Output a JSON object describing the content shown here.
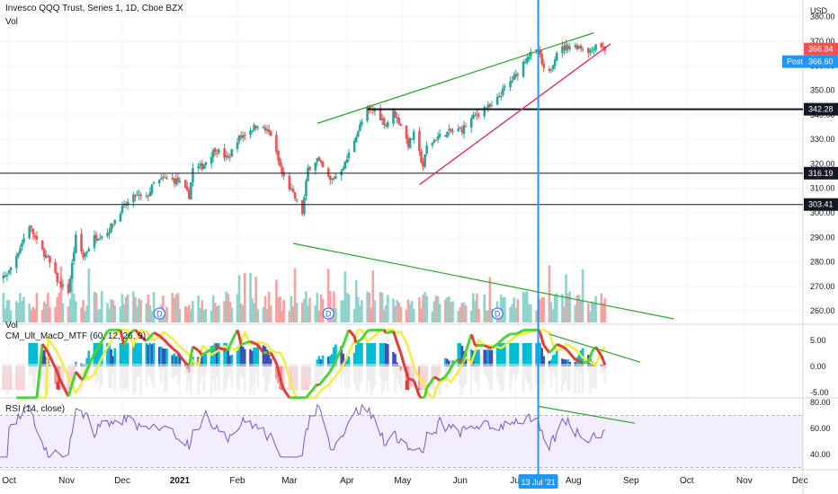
{
  "header": {
    "title": "Invesco QQQ Trust, Series 1, 1D, Cboe BZX",
    "vol_label": "Vol",
    "currency": "USD"
  },
  "colors": {
    "up": "#26a69a",
    "down": "#ef5350",
    "vol_up": "#8fd3cc",
    "vol_down": "#f5a3a1",
    "trend_green": "#2ea52e",
    "trend_pink": "#e91e63",
    "cursor_blue": "#2196f3",
    "rsi_line": "#7e57c2",
    "rsi_band": "#f3eefe",
    "last_price_tag": "#ef5350",
    "post_tag": "#2196f3"
  },
  "chart_data": [
    {
      "type": "candlestick",
      "name": "price",
      "x_ticks": [
        "Oct",
        "Nov",
        "Dec",
        "2021",
        "Feb",
        "Mar",
        "Apr",
        "May",
        "Jun",
        "Jul",
        "Aug",
        "Sep",
        "Oct",
        "Nov",
        "Dec"
      ],
      "y_ticks": [
        260,
        270,
        280,
        290,
        300,
        310,
        320,
        330,
        340,
        350,
        360,
        370,
        380
      ],
      "ylim": [
        256,
        381
      ],
      "close_path": [
        [
          "2020-09-21",
          270
        ],
        [
          "2020-09-25",
          272
        ],
        [
          "2020-10-01",
          276
        ],
        [
          "2020-10-07",
          286
        ],
        [
          "2020-10-12",
          295
        ],
        [
          "2020-10-16",
          288
        ],
        [
          "2020-10-22",
          281
        ],
        [
          "2020-10-28",
          271
        ],
        [
          "2020-11-02",
          268
        ],
        [
          "2020-11-06",
          290
        ],
        [
          "2020-11-10",
          282
        ],
        [
          "2020-11-16",
          290
        ],
        [
          "2020-11-23",
          292
        ],
        [
          "2020-11-30",
          301
        ],
        [
          "2020-12-08",
          307
        ],
        [
          "2020-12-14",
          306
        ],
        [
          "2020-12-18",
          312
        ],
        [
          "2020-12-24",
          314
        ],
        [
          "2020-12-31",
          313
        ],
        [
          "2021-01-06",
          307
        ],
        [
          "2021-01-08",
          318
        ],
        [
          "2021-01-13",
          319
        ],
        [
          "2021-01-20",
          326
        ],
        [
          "2021-01-27",
          322
        ],
        [
          "2021-02-01",
          330
        ],
        [
          "2021-02-08",
          334
        ],
        [
          "2021-02-12",
          336
        ],
        [
          "2021-02-19",
          332
        ],
        [
          "2021-02-25",
          316
        ],
        [
          "2021-03-04",
          306
        ],
        [
          "2021-03-08",
          300
        ],
        [
          "2021-03-11",
          318
        ],
        [
          "2021-03-16",
          322
        ],
        [
          "2021-03-23",
          313
        ],
        [
          "2021-03-26",
          315
        ],
        [
          "2021-03-31",
          320
        ],
        [
          "2021-04-06",
          332
        ],
        [
          "2021-04-12",
          342
        ],
        [
          "2021-04-16",
          342
        ],
        [
          "2021-04-22",
          336
        ],
        [
          "2021-04-26",
          341
        ],
        [
          "2021-04-30",
          336
        ],
        [
          "2021-05-04",
          328
        ],
        [
          "2021-05-07",
          332
        ],
        [
          "2021-05-12",
          319
        ],
        [
          "2021-05-14",
          327
        ],
        [
          "2021-05-20",
          331
        ],
        [
          "2021-05-26",
          333
        ],
        [
          "2021-06-02",
          334
        ],
        [
          "2021-06-08",
          339
        ],
        [
          "2021-06-14",
          343
        ],
        [
          "2021-06-18",
          343
        ],
        [
          "2021-06-25",
          351
        ],
        [
          "2021-07-01",
          356
        ],
        [
          "2021-07-07",
          364
        ],
        [
          "2021-07-13",
          366
        ],
        [
          "2021-07-16",
          358
        ],
        [
          "2021-07-19",
          357
        ],
        [
          "2021-07-23",
          366
        ],
        [
          "2021-07-29",
          368
        ],
        [
          "2021-08-04",
          368
        ],
        [
          "2021-08-10",
          366
        ],
        [
          "2021-08-13",
          369
        ],
        [
          "2021-08-16",
          368
        ],
        [
          "2021-08-18",
          366.84
        ]
      ],
      "levels": [
        342.28,
        316.19,
        303.41
      ],
      "last_price": "366.84",
      "post_label": "Post",
      "post_price": "366.60",
      "axis_tags": [
        "342.28",
        "316.19",
        "303.41"
      ]
    },
    {
      "type": "bar",
      "name": "Vol",
      "dividend_marker": "D",
      "dividend_dates": [
        "2020-12-21",
        "2021-03-22",
        "2021-06-21"
      ]
    },
    {
      "type": "line",
      "name": "CM_Ult_MacD_MTF (60, 12, 26, 9)",
      "y_ticks": [
        "5.00",
        "0.00",
        "-5.00"
      ],
      "ylim": [
        -6.5,
        8
      ]
    },
    {
      "type": "line",
      "name": "RSI (14, close)",
      "y_ticks": [
        "80.00",
        "60.00",
        "40.00"
      ],
      "ylim": [
        30,
        84
      ],
      "band": [
        30,
        70
      ]
    }
  ],
  "cursor": {
    "date_label": "13 Jul '21"
  }
}
